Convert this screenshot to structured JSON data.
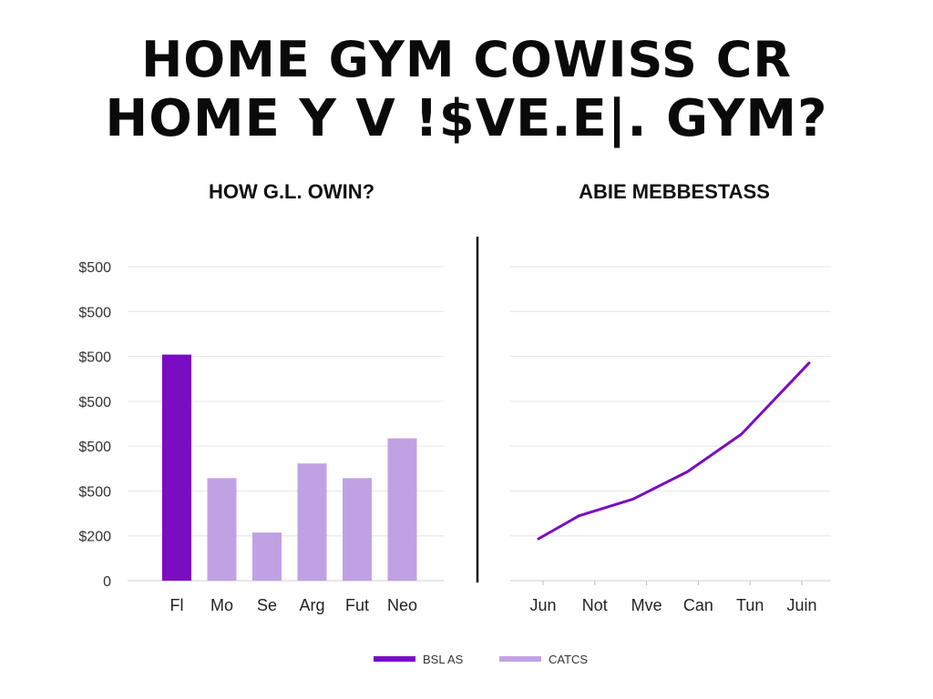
{
  "title": {
    "line1": "HOME GYM COWISS CR",
    "line2": "HOME  Y V !$VE.E|. GYM?"
  },
  "colors": {
    "accent": "#7a0cc4",
    "light": "#c0a2e4",
    "grid": "#e6e6ea",
    "axis": "#111111"
  },
  "chart_data": [
    {
      "type": "bar",
      "title": "HOW G.L. OWIN?",
      "categories": [
        "Fl",
        "Mo",
        "Se",
        "Arg",
        "Fut",
        "Neo"
      ],
      "y_tick_labels": [
        "0",
        "$200",
        "$500",
        "$500",
        "$500",
        "$500",
        "$500",
        "$500"
      ],
      "values": [
        5.4,
        2.45,
        1.15,
        2.8,
        2.45,
        3.4
      ],
      "highlight_index": 0,
      "ylim": [
        0,
        7.5
      ],
      "grid": true
    },
    {
      "type": "line",
      "title": "ABIE MEBBESTASS",
      "categories": [
        "Jun",
        "Not",
        "Mve",
        "Can",
        "Tun",
        "Juin"
      ],
      "x": [
        0,
        0.75,
        1.75,
        2.75,
        3.75,
        5.0
      ],
      "values": [
        1.0,
        1.55,
        1.95,
        2.6,
        3.5,
        5.2
      ],
      "ylim": [
        0,
        7.5
      ],
      "grid": true
    }
  ],
  "legend": [
    {
      "label": "BSL AS",
      "color": "#7a0cc4"
    },
    {
      "label": "CATCS",
      "color": "#c0a2e4"
    }
  ]
}
